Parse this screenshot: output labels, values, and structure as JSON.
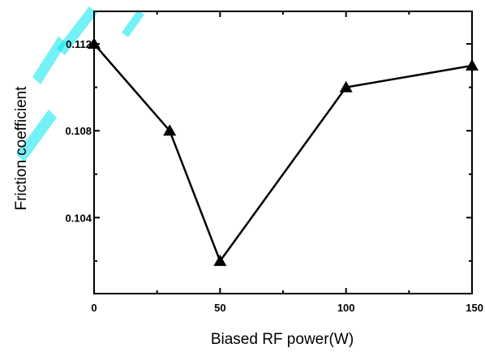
{
  "chart_data": {
    "type": "line",
    "title": "",
    "xlabel": "Biased RF power(W)",
    "ylabel": "Friction coefficient",
    "xlim": [
      0,
      150
    ],
    "ylim": [
      0.1005,
      0.1135
    ],
    "x_ticks": [
      0,
      50,
      100,
      150
    ],
    "x_tick_labels": [
      "0",
      "50",
      "100",
      "150"
    ],
    "y_ticks": [
      0.104,
      0.108,
      0.112
    ],
    "y_tick_labels": [
      "0.104",
      "0.108",
      "0.112"
    ],
    "grid": false,
    "legend": "none",
    "series": [
      {
        "marker": "triangle",
        "color": "#000000",
        "x": [
          0,
          30,
          50,
          100,
          150
        ],
        "y": [
          0.112,
          0.108,
          0.102,
          0.11,
          0.111
        ]
      }
    ]
  },
  "colors": {
    "axis": "#000000",
    "line": "#000000",
    "watermark": "#00e5ee"
  }
}
